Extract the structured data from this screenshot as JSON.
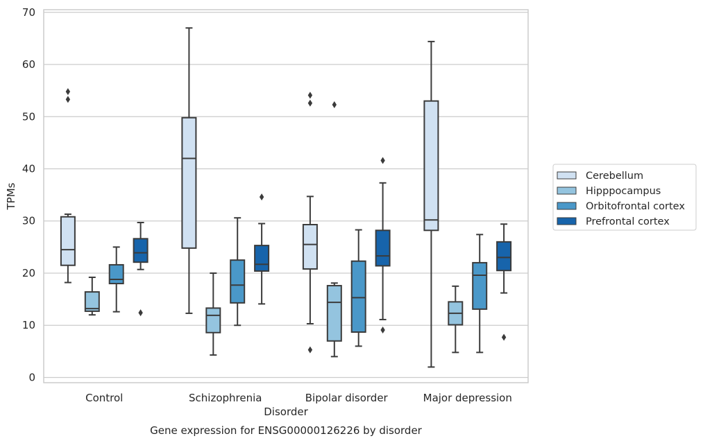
{
  "chart_data": {
    "type": "box",
    "title": "Gene expression for ENSG00000126226 by disorder",
    "xlabel": "Disorder",
    "ylabel": "TPMs",
    "ylim": [
      -1,
      70.5
    ],
    "yticks": [
      0,
      10,
      20,
      30,
      40,
      50,
      60,
      70
    ],
    "grid": "horizontal",
    "legend_position": "right",
    "categories": [
      "Control",
      "Schizophrenia",
      "Bipolar disorder",
      "Major depression"
    ],
    "series": [
      {
        "name": "Cerebellum",
        "color": "#d0e1f2",
        "boxes": [
          {
            "whisker_low": 18.2,
            "q1": 21.5,
            "median": 24.5,
            "q3": 30.8,
            "whisker_high": 31.3,
            "outliers": [
              53.3,
              54.8
            ]
          },
          {
            "whisker_low": 12.3,
            "q1": 24.8,
            "median": 42.0,
            "q3": 49.8,
            "whisker_high": 67.0,
            "outliers": []
          },
          {
            "whisker_low": 10.3,
            "q1": 20.8,
            "median": 25.5,
            "q3": 29.3,
            "whisker_high": 34.7,
            "outliers": [
              5.3,
              52.6,
              54.1
            ]
          },
          {
            "whisker_low": 2.0,
            "q1": 28.2,
            "median": 30.2,
            "q3": 53.0,
            "whisker_high": 64.4,
            "outliers": []
          }
        ]
      },
      {
        "name": "Hipppocampus",
        "color": "#94c4df",
        "boxes": [
          {
            "whisker_low": 12.0,
            "q1": 12.7,
            "median": 13.2,
            "q3": 16.4,
            "whisker_high": 19.2,
            "outliers": []
          },
          {
            "whisker_low": 4.3,
            "q1": 8.6,
            "median": 11.9,
            "q3": 13.3,
            "whisker_high": 20.0,
            "outliers": []
          },
          {
            "whisker_low": 4.0,
            "q1": 7.0,
            "median": 14.4,
            "q3": 17.6,
            "whisker_high": 18.1,
            "outliers": [
              52.3
            ]
          },
          {
            "whisker_low": 4.8,
            "q1": 10.1,
            "median": 12.3,
            "q3": 14.5,
            "whisker_high": 17.5,
            "outliers": []
          }
        ]
      },
      {
        "name": "Orbitofrontal cortex",
        "color": "#4a98c9",
        "boxes": [
          {
            "whisker_low": 12.6,
            "q1": 18.0,
            "median": 18.8,
            "q3": 21.6,
            "whisker_high": 25.0,
            "outliers": []
          },
          {
            "whisker_low": 10.0,
            "q1": 14.3,
            "median": 17.7,
            "q3": 22.5,
            "whisker_high": 30.6,
            "outliers": []
          },
          {
            "whisker_low": 6.0,
            "q1": 8.7,
            "median": 15.3,
            "q3": 22.3,
            "whisker_high": 28.3,
            "outliers": []
          },
          {
            "whisker_low": 4.8,
            "q1": 13.1,
            "median": 19.6,
            "q3": 22.0,
            "whisker_high": 27.4,
            "outliers": []
          }
        ]
      },
      {
        "name": "Prefrontal cortex",
        "color": "#1764ab",
        "boxes": [
          {
            "whisker_low": 20.7,
            "q1": 22.1,
            "median": 23.9,
            "q3": 26.6,
            "whisker_high": 29.7,
            "outliers": [
              12.4
            ]
          },
          {
            "whisker_low": 14.1,
            "q1": 20.4,
            "median": 21.7,
            "q3": 25.3,
            "whisker_high": 29.5,
            "outliers": [
              34.6
            ]
          },
          {
            "whisker_low": 11.1,
            "q1": 21.4,
            "median": 23.3,
            "q3": 28.2,
            "whisker_high": 37.3,
            "outliers": [
              9.1,
              41.6
            ]
          },
          {
            "whisker_low": 16.2,
            "q1": 20.5,
            "median": 23.0,
            "q3": 26.0,
            "whisker_high": 29.4,
            "outliers": [
              7.7
            ]
          }
        ]
      }
    ]
  }
}
